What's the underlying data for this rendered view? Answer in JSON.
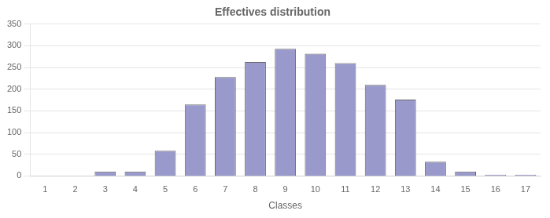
{
  "chart_data": {
    "type": "bar",
    "title": "Effectives distribution",
    "xlabel": "Classes",
    "categories": [
      1,
      2,
      3,
      4,
      5,
      6,
      7,
      8,
      9,
      10,
      11,
      12,
      13,
      14,
      15,
      16,
      17
    ],
    "values": [
      0,
      0,
      10,
      10,
      58,
      165,
      228,
      263,
      293,
      282,
      260,
      210,
      176,
      33,
      10,
      3,
      3
    ],
    "color": "#9999CC",
    "ylim": [
      0,
      350
    ],
    "yticks": [
      0,
      50,
      100,
      150,
      200,
      250,
      300,
      350
    ],
    "grid": true
  }
}
